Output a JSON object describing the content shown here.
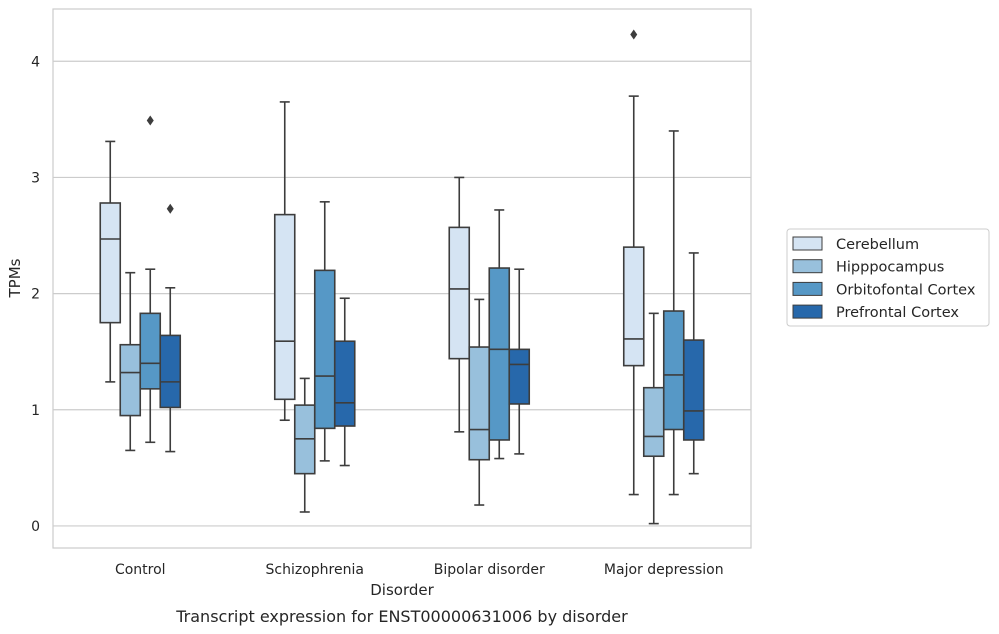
{
  "caption": "Transcript expression for ENST00000631006 by disorder",
  "chart_data": {
    "type": "box",
    "title": "",
    "xlabel": "Disorder",
    "ylabel": "TPMs",
    "ylim": [
      -0.19,
      4.45
    ],
    "yticks": [
      0,
      1,
      2,
      3,
      4
    ],
    "grid": "horizontal",
    "legend_position": "right",
    "categories": [
      "Control",
      "Schizophrenia",
      "Bipolar disorder",
      "Major depression"
    ],
    "series": [
      {
        "name": "Cerebellum",
        "color": "#d5e4f3",
        "boxes": [
          {
            "whislo": 1.24,
            "q1": 1.75,
            "med": 2.47,
            "q3": 2.78,
            "whishi": 3.31,
            "fliers": []
          },
          {
            "whislo": 0.91,
            "q1": 1.09,
            "med": 1.59,
            "q3": 2.68,
            "whishi": 3.65,
            "fliers": []
          },
          {
            "whislo": 0.81,
            "q1": 1.44,
            "med": 2.04,
            "q3": 2.57,
            "whishi": 3.0,
            "fliers": []
          },
          {
            "whislo": 0.27,
            "q1": 1.38,
            "med": 1.61,
            "q3": 2.4,
            "whishi": 3.7,
            "fliers": [
              4.23
            ]
          }
        ]
      },
      {
        "name": "Hipppocampus",
        "color": "#98c0dc",
        "boxes": [
          {
            "whislo": 0.65,
            "q1": 0.95,
            "med": 1.32,
            "q3": 1.56,
            "whishi": 2.18,
            "fliers": []
          },
          {
            "whislo": 0.12,
            "q1": 0.45,
            "med": 0.75,
            "q3": 1.04,
            "whishi": 1.27,
            "fliers": []
          },
          {
            "whislo": 0.18,
            "q1": 0.57,
            "med": 0.83,
            "q3": 1.54,
            "whishi": 1.95,
            "fliers": []
          },
          {
            "whislo": 0.02,
            "q1": 0.6,
            "med": 0.77,
            "q3": 1.19,
            "whishi": 1.83,
            "fliers": []
          }
        ]
      },
      {
        "name": "Orbitofontal Cortex",
        "color": "#5698c6",
        "boxes": [
          {
            "whislo": 0.72,
            "q1": 1.18,
            "med": 1.4,
            "q3": 1.83,
            "whishi": 2.21,
            "fliers": [
              3.49
            ]
          },
          {
            "whislo": 0.56,
            "q1": 0.84,
            "med": 1.29,
            "q3": 2.2,
            "whishi": 2.79,
            "fliers": []
          },
          {
            "whislo": 0.58,
            "q1": 0.74,
            "med": 1.52,
            "q3": 2.22,
            "whishi": 2.72,
            "fliers": []
          },
          {
            "whislo": 0.27,
            "q1": 0.83,
            "med": 1.3,
            "q3": 1.85,
            "whishi": 3.4,
            "fliers": []
          }
        ]
      },
      {
        "name": "Prefrontal Cortex",
        "color": "#2768ab",
        "boxes": [
          {
            "whislo": 0.64,
            "q1": 1.02,
            "med": 1.24,
            "q3": 1.64,
            "whishi": 2.05,
            "fliers": [
              2.73
            ]
          },
          {
            "whislo": 0.52,
            "q1": 0.86,
            "med": 1.06,
            "q3": 1.59,
            "whishi": 1.96,
            "fliers": []
          },
          {
            "whislo": 0.62,
            "q1": 1.05,
            "med": 1.39,
            "q3": 1.52,
            "whishi": 2.21,
            "fliers": []
          },
          {
            "whislo": 0.45,
            "q1": 0.74,
            "med": 0.99,
            "q3": 1.6,
            "whishi": 2.35,
            "fliers": []
          }
        ]
      }
    ]
  }
}
